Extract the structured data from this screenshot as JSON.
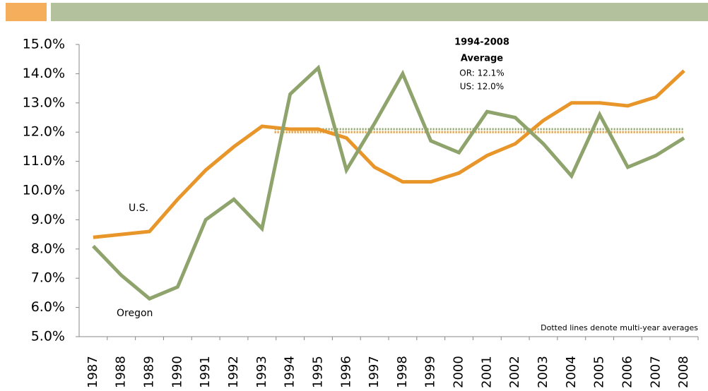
{
  "chart_data": {
    "type": "line",
    "categories": [
      "1987",
      "1988",
      "1989",
      "1990",
      "1991",
      "1992",
      "1993",
      "1994",
      "1995",
      "1996",
      "1997",
      "1998",
      "1999",
      "2000",
      "2001",
      "2002",
      "2003",
      "2004",
      "2005",
      "2006",
      "2007",
      "2008"
    ],
    "series": [
      {
        "name": "U.S.",
        "color": "#e8962a",
        "values": [
          8.4,
          8.5,
          8.6,
          9.7,
          10.7,
          11.5,
          12.2,
          12.1,
          12.1,
          11.8,
          10.8,
          10.3,
          10.3,
          10.6,
          11.2,
          11.6,
          12.4,
          13.0,
          13.0,
          12.9,
          13.2,
          14.1
        ]
      },
      {
        "name": "Oregon",
        "color": "#8fa46c",
        "values": [
          8.1,
          7.1,
          6.3,
          6.7,
          9.0,
          9.7,
          8.7,
          13.3,
          14.2,
          10.7,
          12.3,
          14.0,
          11.7,
          11.3,
          12.7,
          12.5,
          11.6,
          10.5,
          12.6,
          10.8,
          11.2,
          11.8
        ]
      }
    ],
    "ylim": [
      5,
      15
    ],
    "yticks": [
      {
        "value": 5,
        "label": "5.0%"
      },
      {
        "value": 6,
        "label": "6.0%"
      },
      {
        "value": 7,
        "label": "7.0%"
      },
      {
        "value": 8,
        "label": "8.0%"
      },
      {
        "value": 9,
        "label": "9.0%"
      },
      {
        "value": 10,
        "label": "10.0%"
      },
      {
        "value": 11,
        "label": "11.0%"
      },
      {
        "value": 12,
        "label": "12.0%"
      },
      {
        "value": 13,
        "label": "13.0%"
      },
      {
        "value": 14,
        "label": "14.0%"
      },
      {
        "value": 15,
        "label": "15.0%"
      }
    ],
    "average_title": [
      "1994-2008",
      "Average"
    ],
    "average_range": [
      "1994",
      "2008"
    ],
    "averages": [
      {
        "label": "OR: 12.1%",
        "value": 12.1,
        "color": "#8fa46c"
      },
      {
        "label": "US: 12.0%",
        "value": 12.0,
        "color": "#e8962a"
      }
    ],
    "note": "Dotted lines denote multi-year averages"
  }
}
